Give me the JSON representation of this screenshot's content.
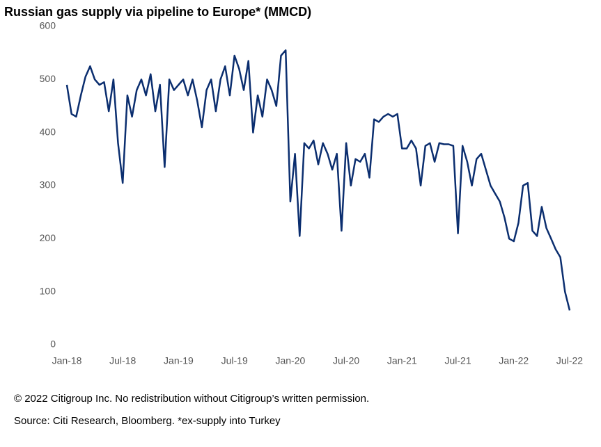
{
  "chart_data": {
    "type": "line",
    "title": "Russian gas supply via pipeline to Europe* (MMCD)",
    "copyright": "© 2022 Citigroup Inc. No redistribution without Citigroup’s written permission.",
    "source": "Source: Citi Research, Bloomberg. *ex-supply into Turkey",
    "color": "#0b2e6f",
    "categories": [
      "Jan-18",
      null,
      null,
      null,
      null,
      null,
      null,
      null,
      null,
      null,
      null,
      null,
      "Jul-18",
      null,
      null,
      null,
      null,
      null,
      null,
      null,
      null,
      null,
      null,
      null,
      "Jan-19",
      null,
      null,
      null,
      null,
      null,
      null,
      null,
      null,
      null,
      null,
      null,
      "Jul-19",
      null,
      null,
      null,
      null,
      null,
      null,
      null,
      null,
      null,
      null,
      null,
      "Jan-20",
      null,
      null,
      null,
      null,
      null,
      null,
      null,
      null,
      null,
      null,
      null,
      "Jul-20",
      null,
      null,
      null,
      null,
      null,
      null,
      null,
      null,
      null,
      null,
      null,
      "Jan-21",
      null,
      null,
      null,
      null,
      null,
      null,
      null,
      null,
      null,
      null,
      null,
      "Jul-21",
      null,
      null,
      null,
      null,
      null,
      null,
      null,
      null,
      null,
      null,
      null,
      "Jan-22",
      null,
      null,
      null,
      null,
      null,
      null,
      null,
      null,
      null,
      null,
      null,
      "Jul-22"
    ],
    "values": [
      490,
      435,
      430,
      470,
      505,
      525,
      500,
      490,
      495,
      440,
      500,
      380,
      305,
      470,
      430,
      480,
      500,
      470,
      510,
      440,
      490,
      335,
      500,
      480,
      490,
      500,
      470,
      500,
      460,
      410,
      480,
      500,
      440,
      500,
      525,
      470,
      545,
      520,
      480,
      535,
      400,
      470,
      430,
      500,
      480,
      450,
      545,
      555,
      270,
      360,
      205,
      380,
      370,
      385,
      340,
      380,
      360,
      330,
      360,
      215,
      380,
      300,
      350,
      345,
      360,
      315,
      425,
      420,
      430,
      435,
      430,
      435,
      370,
      370,
      385,
      370,
      300,
      375,
      380,
      345,
      380,
      378,
      378,
      375,
      210,
      375,
      345,
      300,
      350,
      360,
      330,
      300,
      285,
      270,
      240,
      200,
      195,
      230,
      300,
      305,
      215,
      205,
      260,
      220,
      200,
      180,
      165,
      100,
      65
    ],
    "ylim": [
      0,
      600
    ],
    "yticks": [
      0,
      100,
      200,
      300,
      400,
      500,
      600
    ],
    "grid": false
  }
}
